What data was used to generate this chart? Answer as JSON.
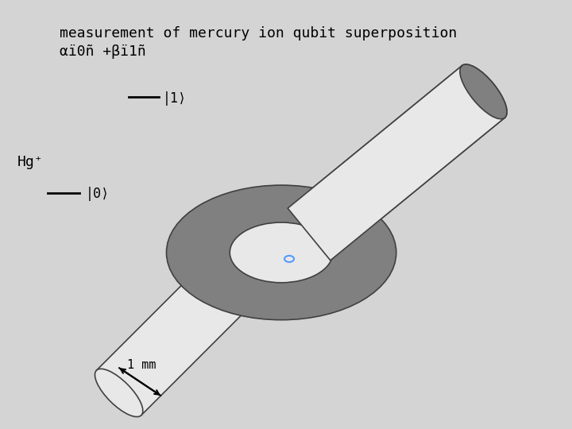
{
  "bg_color": "#d4d4d4",
  "title_line1": "measurement of mercury ion qubit superposition",
  "title_line2": "αï0ñ +βï1ñ",
  "label_1": "|1⟩",
  "label_0": "|0⟩",
  "label_hg": "Hg⁺",
  "label_mm": "1 mm",
  "light_gray": "#e8e8e8",
  "dark_gray": "#808080",
  "outline_color": "#404040",
  "ion_color": "#5599ff",
  "text_color": "#000000"
}
